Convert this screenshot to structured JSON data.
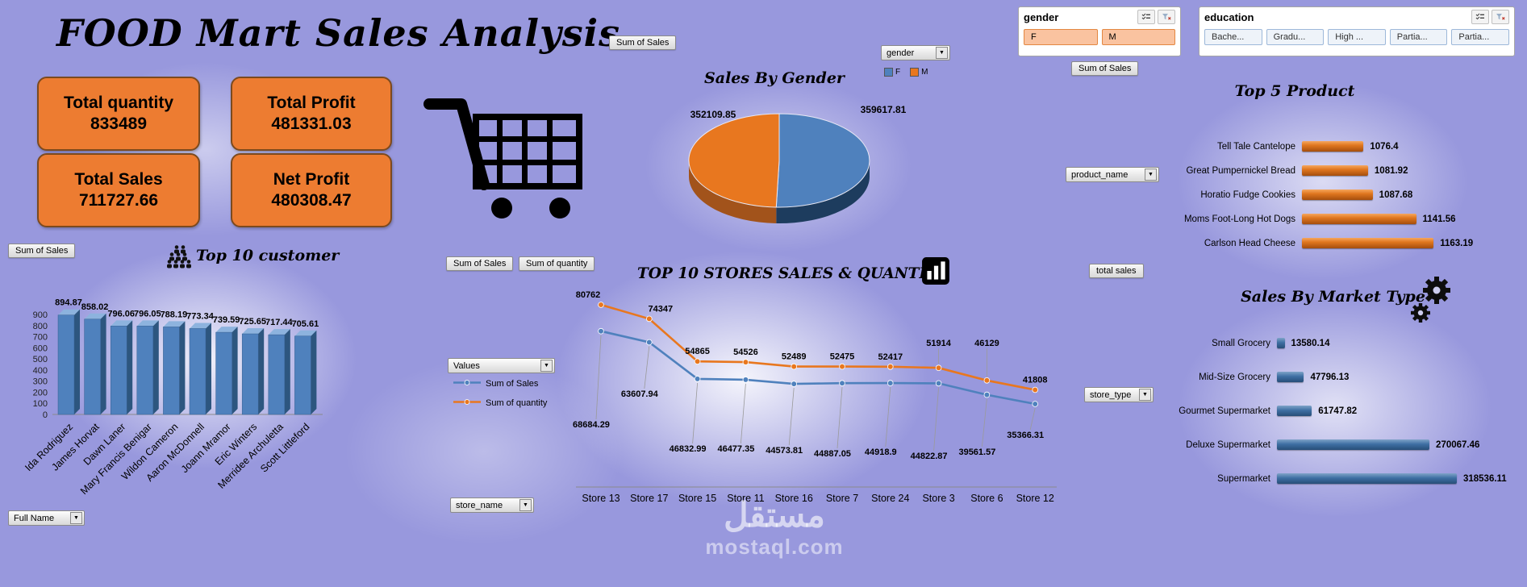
{
  "title": "FOOD Mart Sales Analysis",
  "kpis": [
    {
      "label": "Total quantity",
      "value": "833489"
    },
    {
      "label": "Total Profit",
      "value": "481331.03"
    },
    {
      "label": "Total Sales",
      "value": "711727.66"
    },
    {
      "label": "Net Profit",
      "value": "480308.47"
    }
  ],
  "field_buttons": {
    "sum_of_sales": "Sum of Sales",
    "sum_of_quantity": "Sum of quantity",
    "total_sales": "total sales",
    "values": "Values"
  },
  "dropdowns": {
    "gender": "gender",
    "product_name": "product_name",
    "store_type": "store_type",
    "store_name": "store_name",
    "full_name": "Full Name"
  },
  "slicers": {
    "gender": {
      "title": "gender",
      "items": [
        "F",
        "M"
      ]
    },
    "education": {
      "title": "education",
      "items": [
        "Bache...",
        "Gradu...",
        "High ...",
        "Partia...",
        "Partia..."
      ]
    }
  },
  "watermark": {
    "arabic": "مستقل",
    "domain": "mostaql.com"
  },
  "colors": {
    "background": "#9898dd",
    "kpi_fill": "#ed7c31",
    "blue": "#4f81bd",
    "orange": "#e8771f"
  },
  "chart_data": [
    {
      "id": "sales_by_gender",
      "type": "pie",
      "style": "3d",
      "title": "Sales By Gender",
      "legend": [
        "F",
        "M"
      ],
      "slices": [
        {
          "label": "F",
          "value": 359617.81,
          "color": "#4f81bd",
          "dark": "#1d3c5e"
        },
        {
          "label": "M",
          "value": 352109.85,
          "color": "#e8771f",
          "dark": "#a2531b"
        }
      ]
    },
    {
      "id": "top10_customers",
      "type": "bar",
      "style": "3d",
      "title": "Top 10 customer",
      "value_field": "Sum of Sales",
      "category_field": "Full Name",
      "ylim": [
        0,
        900
      ],
      "ytick_step": 100,
      "categories": [
        "Ida Rodriguez",
        "James Horvat",
        "Dawn Laner",
        "Mary Francis Benigar",
        "Wildon Cameron",
        "Aaron McDonnell",
        "Joann Mramor",
        "Eric Winters",
        "Merridee Archuletta",
        "Scott Littleford"
      ],
      "values": [
        894.87,
        858.02,
        796.06,
        796.05,
        788.19,
        773.34,
        739.59,
        725.65,
        717.44,
        705.61
      ],
      "color": "#4f81bd"
    },
    {
      "id": "top10_stores",
      "type": "line",
      "title": "TOP 10 STORES SALES & QUANTITY",
      "category_field": "store_name",
      "legend_title": "Values",
      "legend_position": "left",
      "categories": [
        "Store 13",
        "Store 17",
        "Store 15",
        "Store 11",
        "Store 16",
        "Store 7",
        "Store 24",
        "Store 3",
        "Store 6",
        "Store 12"
      ],
      "series": [
        {
          "name": "Sum of Sales",
          "color": "#4f81bd",
          "values": [
            68684.29,
            63607.94,
            46832.99,
            46477.35,
            44573.81,
            44887.05,
            44918.9,
            44822.87,
            39561.57,
            35366.31
          ]
        },
        {
          "name": "Sum of quantity",
          "color": "#e8771f",
          "values": [
            80762,
            74347,
            54865,
            54526,
            52489,
            52475,
            52417,
            51914,
            46129,
            41808
          ]
        }
      ]
    },
    {
      "id": "top5_products",
      "type": "bar",
      "orientation": "horizontal",
      "title": "Top 5 Product",
      "category_field": "product_name",
      "value_field": "total sales",
      "axis_min": 1000,
      "categories": [
        "Tell Tale Cantelope",
        "Great Pumpernickel Bread",
        "Horatio Fudge Cookies",
        "Moms Foot-Long Hot Dogs",
        "Carlson Head Cheese"
      ],
      "values": [
        1076.4,
        1081.92,
        1087.68,
        1141.56,
        1163.19
      ],
      "color": "#e8771f"
    },
    {
      "id": "sales_by_market_type",
      "type": "bar",
      "orientation": "horizontal",
      "title": "Sales By Market Type",
      "category_field": "store_type",
      "categories": [
        "Small Grocery",
        "Mid-Size Grocery",
        "Gourmet Supermarket",
        "Deluxe Supermarket",
        "Supermarket"
      ],
      "values": [
        13580.14,
        47796.13,
        61747.82,
        270067.46,
        318536.11
      ],
      "color": "#3e6fa3"
    }
  ]
}
